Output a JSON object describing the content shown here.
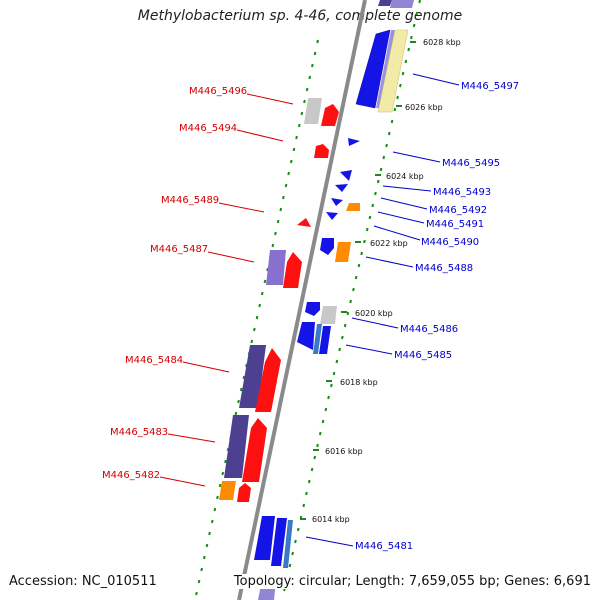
{
  "title": "Methylobacterium sp. 4-46, complete genome",
  "footer": {
    "accession": "Accession: NC_010511",
    "summary": "Topology: circular; Length: 7,659,055 bp; Genes: 6,691"
  },
  "colors": {
    "backbone": "#8a8a8a",
    "tick_dots": "#1a8a1a",
    "gene_label_left": "#d40000",
    "gene_label_right": "#0000cc",
    "forward_gene_red": "#ff1010",
    "reverse_gene_blue": "#1414e6",
    "light_yellow_gene": "#f2eba8",
    "orange_gene": "#ff8c00",
    "gray_gene": "#c8c8c8",
    "purple_gene": "#4d4090",
    "lavender_gene": "#8870d0",
    "steel_blue_gene": "#3a78c8"
  },
  "kbp_markers": [
    "6028 kbp",
    "6026 kbp",
    "6024 kbp",
    "6022 kbp",
    "6020 kbp",
    "6018 kbp",
    "6016 kbp",
    "6014 kbp"
  ],
  "left_labels": [
    "M446_5496",
    "M446_5494",
    "M446_5489",
    "M446_5487",
    "M446_5484",
    "M446_5483",
    "M446_5482"
  ],
  "right_labels": [
    "M446_5497",
    "M446_5495",
    "M446_5493",
    "M446_5492",
    "M446_5491",
    "M446_5490",
    "M446_5488",
    "M446_5486",
    "M446_5485",
    "M446_5481"
  ]
}
